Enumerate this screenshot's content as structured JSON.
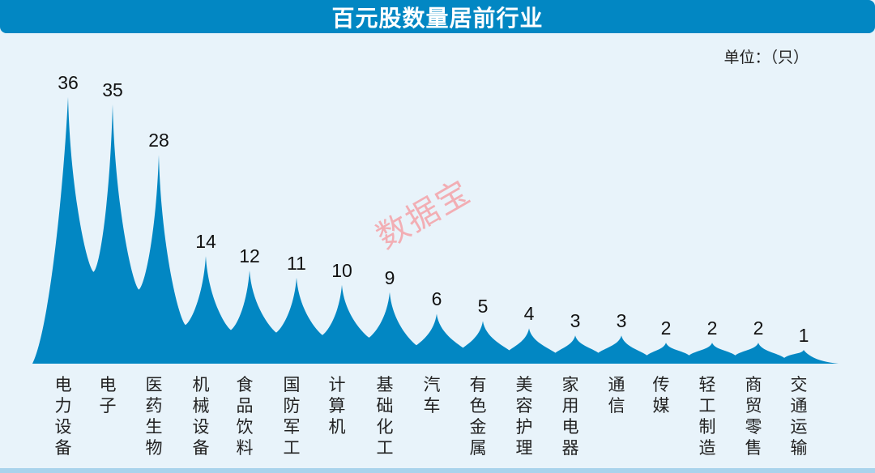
{
  "title": "百元股数量居前行业",
  "unit_label": "单位：（只）",
  "watermark": "数据宝",
  "colors": {
    "title_bg": "#0287c3",
    "peak_fill": "#0287c3",
    "background": "#e8f3fa",
    "watermark": "#f4a3a8"
  },
  "chart_data": {
    "type": "bar",
    "style": "spike/peak area",
    "title": "百元股数量居前行业",
    "ylabel": "单位：（只）",
    "xlabel": "",
    "categories": [
      "电力设备",
      "电子",
      "医药生物",
      "机械设备",
      "食品饮料",
      "国防军工",
      "计算机",
      "基础化工",
      "汽车",
      "有色金属",
      "美容护理",
      "家用电器",
      "通信",
      "传媒",
      "轻工制造",
      "商贸零售",
      "交通运输"
    ],
    "values": [
      36,
      35,
      28,
      14,
      12,
      11,
      10,
      9,
      6,
      5,
      4,
      3,
      3,
      2,
      2,
      2,
      1
    ],
    "ylim": [
      0,
      36
    ],
    "grid": false,
    "legend": "none",
    "data_labels": true
  },
  "labels": {
    "values": [
      "36",
      "35",
      "28",
      "14",
      "12",
      "11",
      "10",
      "9",
      "6",
      "5",
      "4",
      "3",
      "3",
      "2",
      "2",
      "2",
      "1"
    ],
    "categories": [
      "电力设备",
      "电子",
      "医药生物",
      "机械设备",
      "食品饮料",
      "国防军工",
      "计算机",
      "基础化工",
      "汽车",
      "有色金属",
      "美容护理",
      "家用电器",
      "通信",
      "传媒",
      "轻工制造",
      "商贸零售",
      "交通运输"
    ]
  }
}
